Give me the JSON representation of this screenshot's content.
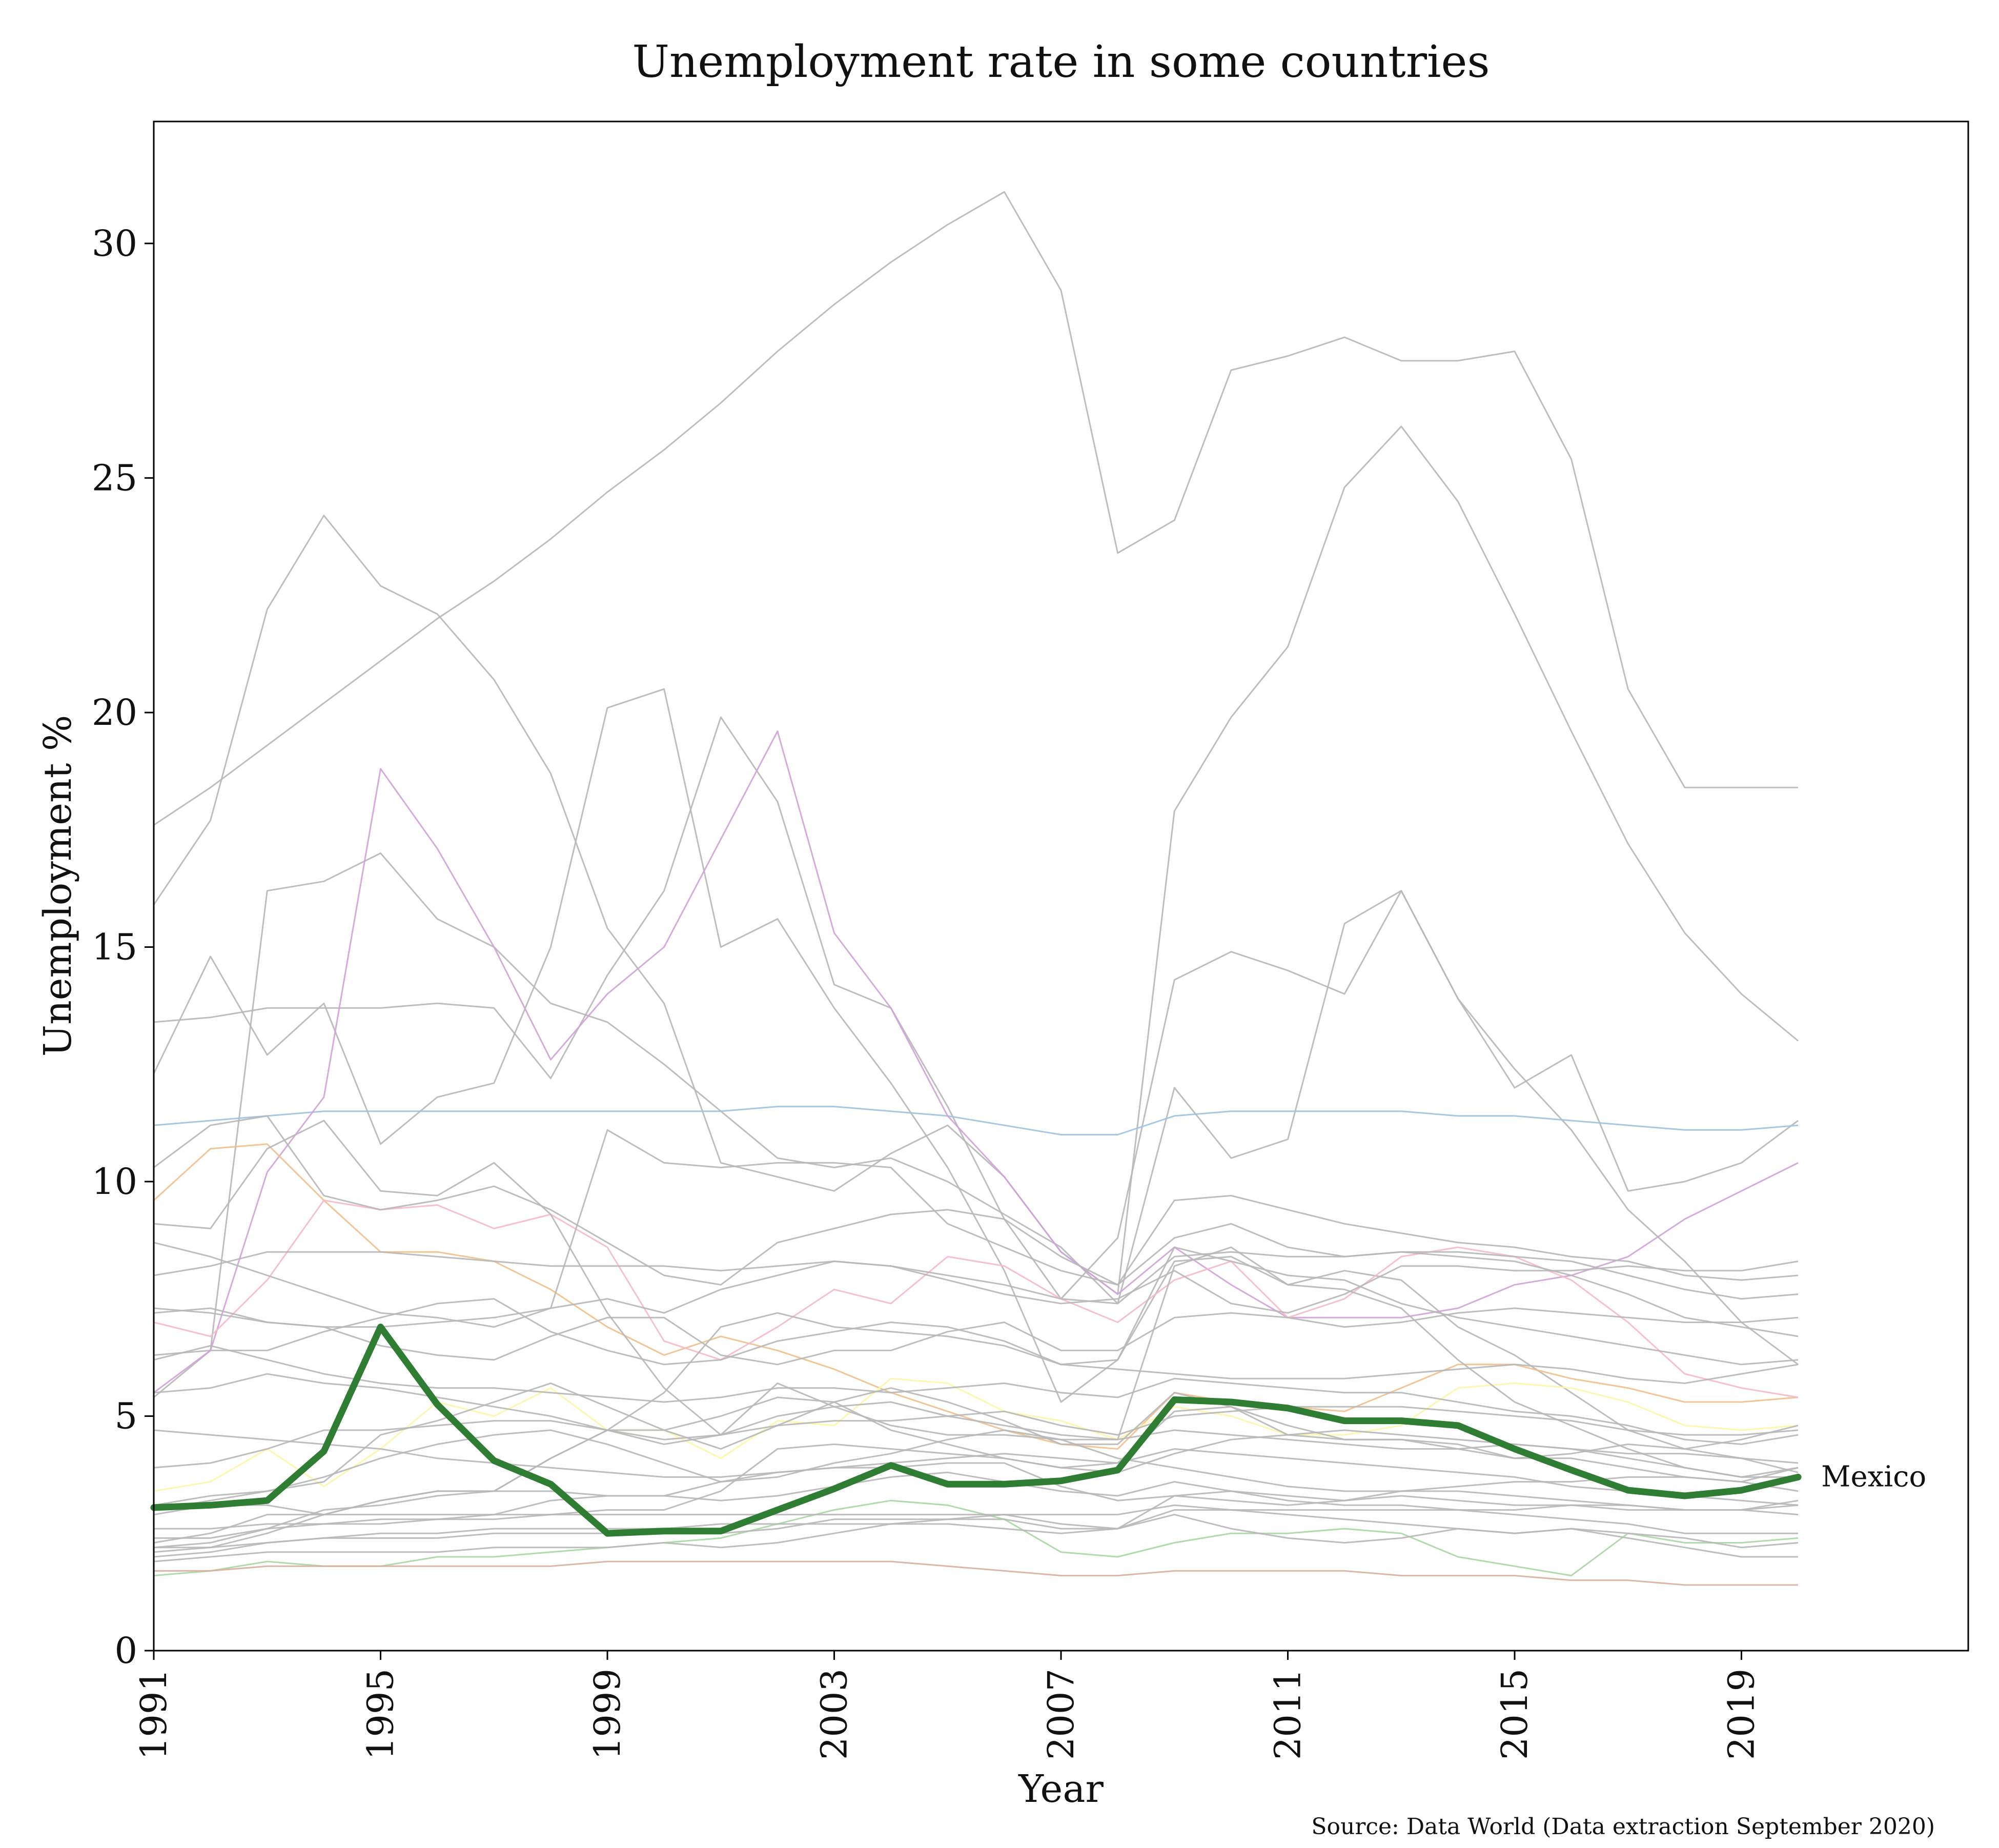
{
  "chart_data": {
    "type": "line",
    "title": "Unemployment rate in some countries",
    "xlabel": "Year",
    "ylabel": "Unemployment %",
    "source": "Source: Data World (Data extraction September 2020)",
    "xlim": [
      1991,
      2023
    ],
    "ylim": [
      0,
      32.6
    ],
    "xticks": [
      1991,
      1995,
      1999,
      2003,
      2007,
      2011,
      2015,
      2019
    ],
    "yticks": [
      0,
      5,
      10,
      15,
      20,
      25,
      30
    ],
    "grid": false,
    "x": [
      1991,
      1992,
      1993,
      1994,
      1995,
      1996,
      1997,
      1998,
      1999,
      2000,
      2001,
      2002,
      2003,
      2004,
      2005,
      2006,
      2007,
      2008,
      2009,
      2010,
      2011,
      2012,
      2013,
      2014,
      2015,
      2016,
      2017,
      2018,
      2019,
      2020
    ],
    "highlight": {
      "name": "Mexico",
      "label": "Mexico",
      "color": "#2e7d32",
      "values": [
        3.05,
        3.1,
        3.2,
        4.25,
        6.9,
        5.25,
        4.05,
        3.55,
        2.5,
        2.55,
        2.55,
        3.0,
        3.45,
        3.95,
        3.55,
        3.55,
        3.62,
        3.85,
        5.35,
        5.3,
        5.17,
        4.9,
        4.9,
        4.8,
        4.3,
        3.85,
        3.42,
        3.3,
        3.42,
        3.7
      ]
    },
    "series": [
      {
        "color": "#b7b7b7",
        "values": [
          17.6,
          18.4,
          19.3,
          20.2,
          21.1,
          22.0,
          22.8,
          23.7,
          24.7,
          25.6,
          26.6,
          27.7,
          28.7,
          29.6,
          30.4,
          31.1,
          29.0,
          23.4,
          24.1,
          27.3,
          27.6,
          28.0,
          27.5,
          27.5,
          27.7,
          25.4,
          20.5,
          18.4,
          18.4,
          18.4
        ]
      },
      {
        "color": "#b7b7b7",
        "values": [
          15.9,
          17.7,
          22.2,
          24.2,
          22.7,
          22.1,
          20.7,
          18.7,
          15.4,
          13.8,
          10.4,
          10.1,
          9.8,
          10.6,
          11.2,
          10.1,
          8.5,
          7.6,
          17.9,
          19.9,
          21.4,
          24.8,
          26.1,
          24.5,
          22.1,
          19.6,
          17.2,
          15.3,
          14.0,
          13.0
        ]
      },
      {
        "color": "#b7b7b7",
        "values": [
          5.4,
          6.4,
          16.2,
          16.4,
          17.0,
          15.6,
          15.0,
          13.8,
          13.4,
          12.5,
          11.5,
          10.5,
          10.3,
          10.5,
          10.0,
          9.3,
          8.6,
          7.4,
          12.0,
          10.5,
          10.9,
          15.5,
          16.2,
          13.9,
          12.4,
          11.1,
          9.4,
          8.3,
          7.0,
          6.1
        ]
      },
      {
        "color": "#b7b7b7",
        "values": [
          13.4,
          13.5,
          13.7,
          13.7,
          13.7,
          13.8,
          13.7,
          12.2,
          14.4,
          16.2,
          19.9,
          18.1,
          14.2,
          13.7,
          11.6,
          9.2,
          7.5,
          8.8,
          14.3,
          14.9,
          14.5,
          14.0,
          16.2,
          13.9,
          12.0,
          12.7,
          9.8,
          10.0,
          10.4,
          11.3
        ]
      },
      {
        "color": "#b7b7b7",
        "values": [
          12.3,
          14.8,
          12.7,
          13.8,
          10.8,
          11.8,
          12.1,
          15.0,
          20.1,
          20.5,
          15.0,
          15.6,
          13.7,
          12.1,
          10.3,
          8.1,
          5.3,
          6.2,
          8.3,
          8.4,
          7.8,
          8.1,
          7.9,
          6.9,
          6.3,
          5.5,
          4.7,
          4.3,
          4.1,
          3.8
        ]
      },
      {
        "color": "#9ec1df",
        "values": [
          11.2,
          11.3,
          11.4,
          11.5,
          11.5,
          11.5,
          11.5,
          11.5,
          11.5,
          11.5,
          11.5,
          11.6,
          11.6,
          11.5,
          11.4,
          11.2,
          11.0,
          11.0,
          11.4,
          11.5,
          11.5,
          11.5,
          11.5,
          11.4,
          11.4,
          11.3,
          11.2,
          11.1,
          11.1,
          11.2
        ]
      },
      {
        "color": "#cfa2d8",
        "values": [
          5.5,
          6.4,
          10.2,
          11.8,
          18.8,
          17.1,
          15.0,
          12.6,
          14.0,
          15.0,
          17.3,
          19.6,
          15.3,
          13.7,
          11.4,
          10.1,
          8.5,
          7.6,
          8.6,
          7.8,
          7.1,
          7.1,
          7.1,
          7.3,
          7.8,
          8.0,
          8.4,
          9.2,
          9.8,
          10.4
        ]
      },
      {
        "color": "#f1bf8c",
        "values": [
          9.6,
          10.7,
          10.8,
          9.6,
          8.5,
          8.5,
          8.3,
          7.7,
          6.9,
          6.3,
          6.7,
          6.4,
          6.0,
          5.5,
          5.1,
          4.7,
          4.4,
          4.3,
          5.5,
          5.3,
          5.2,
          5.1,
          5.6,
          6.1,
          6.1,
          5.8,
          5.6,
          5.3,
          5.3,
          5.4
        ]
      },
      {
        "color": "#f6b9c8",
        "values": [
          7.0,
          6.7,
          7.9,
          9.6,
          9.4,
          9.5,
          9.0,
          9.3,
          8.6,
          6.6,
          6.2,
          6.9,
          7.7,
          7.4,
          8.4,
          8.2,
          7.5,
          7.0,
          7.9,
          8.3,
          7.1,
          7.5,
          8.4,
          8.6,
          8.4,
          7.9,
          7.0,
          5.9,
          5.6,
          5.4
        ]
      },
      {
        "color": "#fcf7a6",
        "values": [
          3.4,
          3.6,
          4.3,
          3.5,
          4.3,
          5.3,
          5.0,
          5.6,
          4.7,
          4.7,
          4.1,
          4.9,
          4.8,
          5.8,
          5.7,
          5.1,
          4.9,
          4.5,
          5.2,
          5.0,
          4.6,
          4.6,
          4.8,
          5.6,
          5.7,
          5.6,
          5.3,
          4.8,
          4.7,
          4.8
        ]
      },
      {
        "color": "#a9d6a3",
        "values": [
          1.6,
          1.7,
          1.9,
          1.8,
          1.8,
          2.0,
          2.0,
          2.1,
          2.2,
          2.3,
          2.4,
          2.7,
          3.0,
          3.2,
          3.1,
          2.8,
          2.1,
          2.0,
          2.3,
          2.5,
          2.5,
          2.6,
          2.5,
          2.0,
          1.8,
          1.6,
          2.5,
          2.3,
          2.3,
          2.4
        ]
      },
      {
        "color": "#d9ae9f",
        "values": [
          1.7,
          1.7,
          1.8,
          1.8,
          1.8,
          1.8,
          1.8,
          1.8,
          1.9,
          1.9,
          1.9,
          1.9,
          1.9,
          1.9,
          1.8,
          1.7,
          1.6,
          1.6,
          1.7,
          1.7,
          1.7,
          1.7,
          1.6,
          1.6,
          1.6,
          1.5,
          1.5,
          1.4,
          1.4,
          1.4
        ]
      },
      {
        "color": "#b7b7b7",
        "values": [
          10.3,
          11.2,
          11.4,
          9.7,
          9.4,
          9.6,
          9.9,
          9.4,
          8.7,
          8.0,
          7.8,
          8.7,
          9.0,
          9.3,
          9.4,
          9.2,
          8.4,
          7.8,
          8.8,
          9.1,
          8.6,
          8.4,
          8.5,
          8.4,
          8.3,
          8.0,
          7.6,
          7.1,
          6.9,
          6.7
        ]
      },
      {
        "color": "#b7b7b7",
        "values": [
          9.1,
          9.0,
          10.7,
          11.3,
          9.8,
          9.7,
          10.4,
          9.3,
          7.2,
          5.6,
          4.6,
          5.7,
          5.2,
          4.8,
          4.6,
          4.6,
          4.5,
          4.5,
          8.2,
          8.6,
          7.8,
          7.7,
          7.3,
          6.2,
          5.3,
          4.8,
          4.3,
          3.9,
          3.7,
          3.7
        ]
      },
      {
        "color": "#b7b7b7",
        "values": [
          8.0,
          8.2,
          8.5,
          8.5,
          8.5,
          8.4,
          8.3,
          8.2,
          8.2,
          8.2,
          8.1,
          8.2,
          8.3,
          8.2,
          8.0,
          7.8,
          7.5,
          7.4,
          8.4,
          8.5,
          8.4,
          8.4,
          8.5,
          8.5,
          8.4,
          8.3,
          8.0,
          7.7,
          7.5,
          7.6
        ]
      },
      {
        "color": "#b7b7b7",
        "values": [
          7.3,
          7.2,
          7.0,
          6.9,
          6.9,
          7.0,
          7.1,
          7.3,
          11.1,
          10.4,
          10.3,
          10.4,
          10.4,
          10.3,
          9.1,
          8.6,
          8.1,
          7.8,
          9.6,
          9.7,
          9.4,
          9.1,
          8.9,
          8.7,
          8.6,
          8.4,
          8.3,
          8.0,
          7.9,
          8.0
        ]
      },
      {
        "color": "#b7b7b7",
        "values": [
          6.3,
          6.4,
          6.4,
          6.8,
          7.1,
          7.4,
          7.5,
          6.8,
          6.4,
          6.1,
          6.2,
          6.6,
          6.8,
          7.0,
          6.9,
          6.6,
          6.1,
          6.2,
          8.6,
          8.3,
          8.0,
          7.9,
          7.4,
          7.1,
          6.9,
          6.7,
          6.5,
          6.3,
          6.1,
          6.2
        ]
      },
      {
        "color": "#b7b7b7",
        "values": [
          8.7,
          8.4,
          8.0,
          7.6,
          7.2,
          7.1,
          6.9,
          7.3,
          7.5,
          7.2,
          7.7,
          8.0,
          8.3,
          8.2,
          7.9,
          7.6,
          7.4,
          7.5,
          8.1,
          7.4,
          7.2,
          7.6,
          8.2,
          8.2,
          8.1,
          8.1,
          8.2,
          8.1,
          8.1,
          8.3
        ]
      },
      {
        "color": "#b7b7b7",
        "values": [
          2.1,
          2.2,
          2.5,
          2.9,
          3.2,
          3.4,
          3.4,
          4.1,
          4.7,
          4.7,
          5.0,
          5.4,
          5.3,
          4.7,
          4.4,
          4.1,
          3.9,
          4.0,
          5.1,
          5.2,
          4.6,
          4.5,
          4.5,
          4.3,
          4.1,
          4.1,
          3.9,
          3.7,
          3.6,
          3.9
        ]
      },
      {
        "color": "#b7b7b7",
        "values": [
          2.3,
          2.5,
          2.9,
          2.9,
          3.2,
          3.4,
          3.4,
          4.1,
          4.7,
          5.5,
          6.9,
          7.2,
          6.9,
          6.8,
          6.7,
          6.5,
          6.1,
          6.0,
          5.9,
          5.8,
          5.8,
          5.8,
          5.9,
          6.0,
          6.1,
          6.0,
          5.8,
          5.7,
          5.9,
          6.1
        ]
      },
      {
        "color": "#b7b7b7",
        "values": [
          2.4,
          2.4,
          2.6,
          2.7,
          2.7,
          2.8,
          2.8,
          2.9,
          3.0,
          3.0,
          3.4,
          4.3,
          4.4,
          4.3,
          4.2,
          4.1,
          3.9,
          3.8,
          4.2,
          4.5,
          4.6,
          4.7,
          4.6,
          4.5,
          4.4,
          4.3,
          4.2,
          4.2,
          4.1,
          4.0
        ]
      },
      {
        "color": "#b7b7b7",
        "values": [
          2.6,
          2.6,
          2.7,
          2.7,
          2.8,
          2.8,
          2.9,
          3.2,
          3.3,
          3.3,
          3.6,
          3.8,
          3.9,
          3.9,
          4.0,
          4.0,
          3.5,
          3.2,
          3.3,
          3.2,
          3.1,
          3.2,
          3.3,
          3.2,
          3.1,
          3.1,
          3.0,
          3.0,
          3.0,
          3.2
        ]
      },
      {
        "color": "#b7b7b7",
        "values": [
          5.5,
          5.6,
          5.9,
          5.7,
          5.6,
          5.4,
          5.2,
          5.0,
          4.7,
          4.4,
          4.6,
          5.0,
          5.2,
          5.3,
          5.0,
          4.8,
          4.6,
          4.5,
          4.7,
          4.6,
          4.5,
          4.4,
          4.3,
          4.3,
          4.4,
          4.3,
          4.1,
          3.9,
          3.7,
          3.9
        ]
      },
      {
        "color": "#b7b7b7",
        "values": [
          3.9,
          4.0,
          4.3,
          4.7,
          4.7,
          4.8,
          4.9,
          4.9,
          4.7,
          4.5,
          4.6,
          4.8,
          4.9,
          4.9,
          5.0,
          5.1,
          4.8,
          4.6,
          5.0,
          5.1,
          5.2,
          5.2,
          5.2,
          5.1,
          5.0,
          4.9,
          4.7,
          4.6,
          4.6,
          4.7
        ]
      },
      {
        "color": "#b7b7b7",
        "values": [
          2.2,
          2.3,
          2.6,
          3.0,
          3.1,
          3.3,
          3.4,
          3.4,
          3.3,
          3.3,
          3.2,
          3.3,
          3.5,
          3.7,
          3.8,
          3.6,
          3.4,
          3.3,
          3.6,
          3.4,
          3.3,
          3.2,
          3.4,
          3.4,
          3.3,
          3.2,
          3.1,
          3.0,
          3.0,
          2.9
        ]
      },
      {
        "color": "#b7b7b7",
        "values": [
          6.2,
          6.5,
          6.2,
          5.9,
          5.7,
          5.6,
          5.6,
          5.5,
          5.4,
          5.3,
          5.4,
          5.6,
          5.6,
          5.5,
          5.6,
          5.7,
          5.5,
          5.4,
          5.8,
          5.7,
          5.6,
          5.5,
          5.5,
          5.3,
          5.1,
          5.0,
          4.8,
          4.5,
          4.4,
          4.6
        ]
      },
      {
        "color": "#b7b7b7",
        "values": [
          2.9,
          3.1,
          3.1,
          2.9,
          2.9,
          2.9,
          2.9,
          2.9,
          2.9,
          2.9,
          2.9,
          2.9,
          2.9,
          2.9,
          2.9,
          2.9,
          2.7,
          2.6,
          3.0,
          3.0,
          3.0,
          3.0,
          3.0,
          3.0,
          3.0,
          3.1,
          3.1,
          3.0,
          3.0,
          3.1
        ]
      },
      {
        "color": "#b7b7b7",
        "values": [
          2.2,
          2.2,
          2.3,
          2.4,
          2.5,
          2.5,
          2.6,
          2.6,
          2.6,
          2.6,
          2.7,
          2.7,
          2.7,
          2.7,
          2.7,
          2.6,
          2.5,
          2.6,
          2.9,
          2.6,
          2.4,
          2.3,
          2.4,
          2.6,
          2.5,
          2.6,
          2.5,
          2.4,
          2.2,
          2.3
        ]
      },
      {
        "color": "#b7b7b7",
        "values": [
          2.0,
          2.1,
          2.3,
          2.4,
          2.4,
          2.4,
          2.5,
          2.5,
          2.5,
          2.5,
          2.5,
          2.6,
          2.8,
          2.8,
          2.8,
          2.8,
          2.6,
          2.6,
          3.3,
          3.4,
          3.2,
          3.1,
          3.1,
          3.0,
          2.9,
          2.8,
          2.7,
          2.5,
          2.5,
          2.5
        ]
      },
      {
        "color": "#b7b7b7",
        "values": [
          3.1,
          3.3,
          3.4,
          3.6,
          4.6,
          4.9,
          5.3,
          5.7,
          5.2,
          4.7,
          4.3,
          4.8,
          5.3,
          5.6,
          5.3,
          4.9,
          4.4,
          4.4,
          5.5,
          5.2,
          4.8,
          4.5,
          4.5,
          4.4,
          4.1,
          4.2,
          4.4,
          4.3,
          4.5,
          4.8
        ]
      },
      {
        "color": "#b7b7b7",
        "values": [
          7.2,
          7.3,
          7.0,
          6.9,
          6.5,
          6.3,
          6.2,
          6.7,
          7.1,
          7.1,
          6.3,
          6.1,
          6.4,
          6.4,
          6.8,
          7.0,
          6.4,
          6.4,
          7.1,
          7.2,
          7.1,
          6.9,
          7.0,
          7.2,
          7.3,
          7.2,
          7.1,
          7.0,
          7.0,
          7.1
        ]
      },
      {
        "color": "#b7b7b7",
        "values": [
          3.0,
          3.2,
          3.4,
          3.7,
          4.1,
          4.4,
          4.6,
          4.7,
          4.4,
          4.0,
          3.6,
          3.7,
          4.0,
          4.2,
          4.5,
          4.7,
          4.5,
          4.1,
          3.9,
          3.7,
          3.5,
          3.4,
          3.4,
          3.5,
          3.6,
          3.6,
          3.7,
          3.7,
          3.6,
          3.4
        ]
      },
      {
        "color": "#b7b7b7",
        "values": [
          4.7,
          4.6,
          4.5,
          4.4,
          4.3,
          4.1,
          4.0,
          3.9,
          3.8,
          3.7,
          3.7,
          3.8,
          3.9,
          4.0,
          4.1,
          4.2,
          4.1,
          4.0,
          4.3,
          4.2,
          4.1,
          4.0,
          3.9,
          3.8,
          3.7,
          3.5,
          3.4,
          3.3,
          3.2,
          3.1
        ]
      },
      {
        "color": "#b7b7b7",
        "values": [
          1.9,
          2.0,
          2.1,
          2.1,
          2.1,
          2.1,
          2.2,
          2.2,
          2.2,
          2.3,
          2.2,
          2.3,
          2.5,
          2.7,
          2.8,
          2.9,
          2.9,
          2.9,
          3.1,
          3.0,
          2.9,
          2.8,
          2.7,
          2.6,
          2.5,
          2.6,
          2.4,
          2.2,
          2.0,
          2.0
        ]
      }
    ]
  }
}
